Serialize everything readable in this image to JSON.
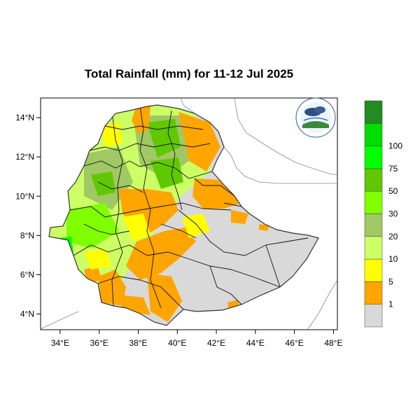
{
  "title": "Total Rainfall (mm) for 11-12 Jul 2025",
  "map": {
    "lon_range": [
      33,
      48.2
    ],
    "lat_range": [
      3.2,
      15
    ],
    "lon_ticks": [
      {
        "value": 34,
        "label": "34°E"
      },
      {
        "value": 36,
        "label": "36°E"
      },
      {
        "value": 38,
        "label": "38°E"
      },
      {
        "value": 40,
        "label": "40°E"
      },
      {
        "value": 42,
        "label": "42°E"
      },
      {
        "value": 44,
        "label": "44°E"
      },
      {
        "value": 46,
        "label": "46°E"
      },
      {
        "value": 48,
        "label": "48°E"
      }
    ],
    "lat_ticks": [
      {
        "value": 4,
        "label": "4°N"
      },
      {
        "value": 6,
        "label": "6°N"
      },
      {
        "value": 8,
        "label": "8°N"
      },
      {
        "value": 10,
        "label": "10°N"
      },
      {
        "value": 12,
        "label": "12°N"
      },
      {
        "value": 14,
        "label": "14°N"
      }
    ]
  },
  "colorbar": {
    "colors": [
      "#d9d9d9",
      "#ffa500",
      "#ffff00",
      "#ccff66",
      "#a0c864",
      "#80ff00",
      "#60c800",
      "#00ff00",
      "#00dd00",
      "#228b22"
    ],
    "labels": [
      "1",
      "5",
      "10",
      "20",
      "30",
      "50",
      "75",
      "100"
    ]
  },
  "colors": {
    "no_rain": "#d9d9d9",
    "orange": "#ffa500",
    "yellow": "#ffff00",
    "light_green": "#ccff66",
    "olive": "#a0c864",
    "lime": "#80ff00",
    "green": "#60c800",
    "bright_green": "#00ff00"
  }
}
